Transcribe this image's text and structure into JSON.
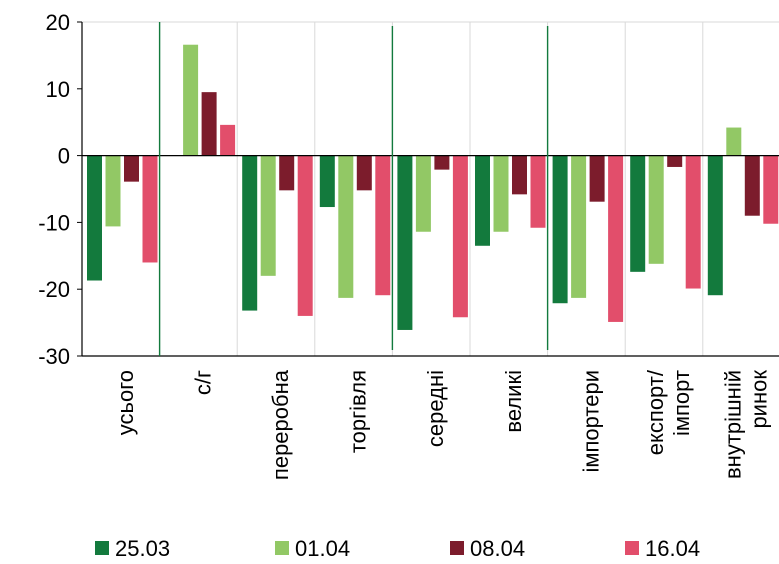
{
  "chart_data": {
    "type": "bar",
    "categories": [
      "усього",
      "с/г",
      "переробна",
      "торгівля",
      "середні",
      "великі",
      "імпортери",
      "експорт/\nімпорт",
      "внутрішній\nринок"
    ],
    "series": [
      {
        "name": "25.03",
        "color": "#137a3d",
        "values": [
          -18.7,
          null,
          -23.2,
          -7.7,
          -26.1,
          -13.5,
          -22.1,
          -17.4,
          -20.9
        ]
      },
      {
        "name": "01.04",
        "color": "#92c865",
        "values": [
          -10.6,
          16.6,
          -18.0,
          -21.3,
          -11.4,
          -11.4,
          -21.3,
          -16.2,
          4.2
        ]
      },
      {
        "name": "08.04",
        "color": "#7c1c2c",
        "values": [
          -3.9,
          9.5,
          -5.2,
          -5.2,
          -2.1,
          -5.8,
          -6.9,
          -1.7,
          -9.0
        ]
      },
      {
        "name": "16.04",
        "color": "#e24e6b",
        "values": [
          -16.0,
          4.6,
          -24.0,
          -20.9,
          -24.2,
          -10.8,
          -24.9,
          -19.9,
          -10.2
        ]
      }
    ],
    "yticks": [
      "20",
      "10",
      "0",
      "-10",
      "-20",
      "-30"
    ],
    "ylim": [
      -30,
      20
    ],
    "legend_position": "bottom",
    "separators_after_categories": [
      1,
      4,
      6
    ]
  }
}
